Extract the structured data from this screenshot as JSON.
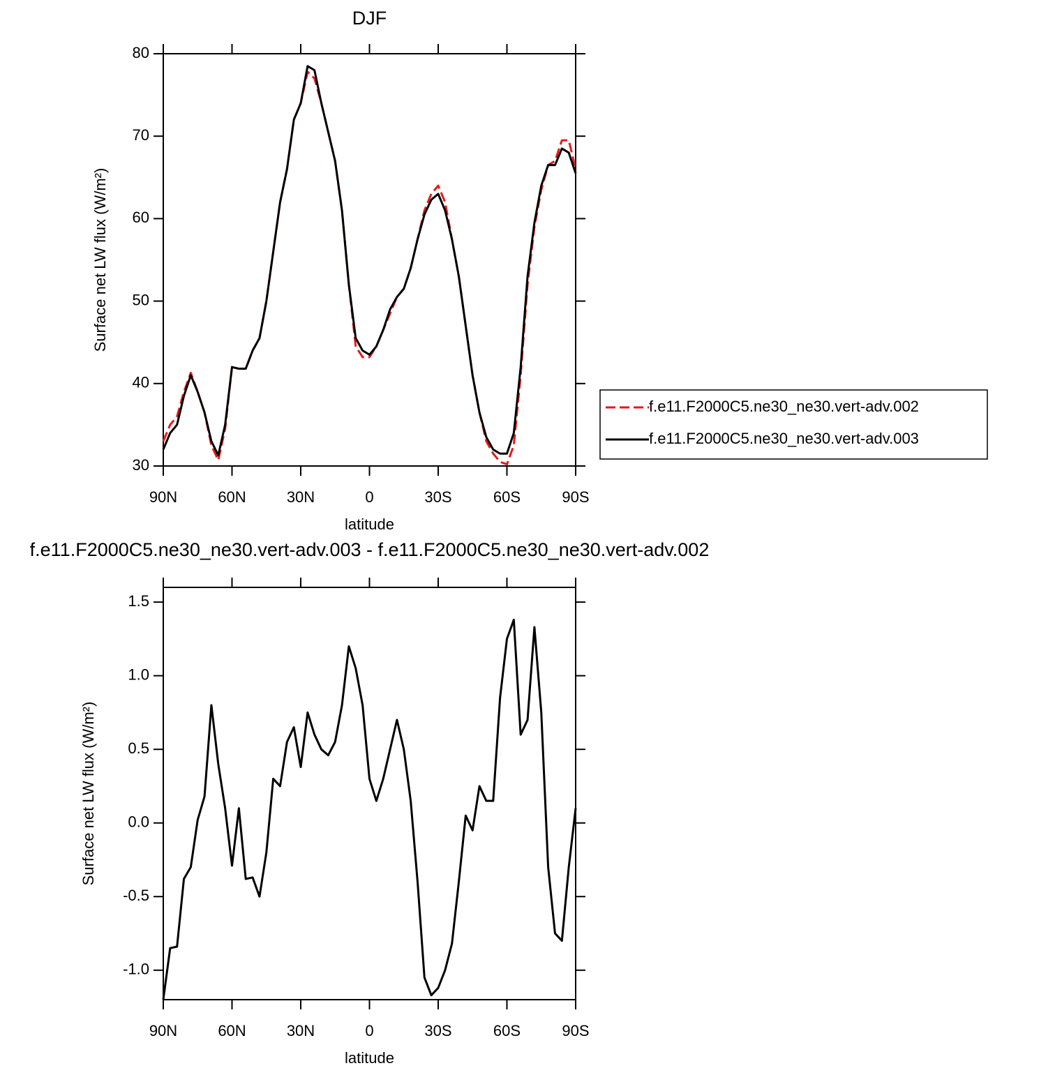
{
  "chart_data": [
    {
      "type": "line",
      "title": "DJF",
      "xlabel": "latitude",
      "ylabel": "Surface net LW flux (W/m²)",
      "x": [
        90,
        87,
        84,
        81,
        78,
        75,
        72,
        69,
        66,
        63,
        60,
        57,
        54,
        51,
        48,
        45,
        42,
        39,
        36,
        33,
        30,
        27,
        24,
        21,
        18,
        15,
        12,
        9,
        6,
        3,
        0,
        -3,
        -6,
        -9,
        -12,
        -15,
        -18,
        -21,
        -24,
        -27,
        -30,
        -33,
        -36,
        -39,
        -42,
        -45,
        -48,
        -51,
        -54,
        -57,
        -60,
        -63,
        -66,
        -69,
        -72,
        -75,
        -78,
        -81,
        -84,
        -87,
        -90
      ],
      "series": [
        {
          "name": "f.e11.F2000C5.ne30_ne30.vert-adv.002",
          "color": "#e41a1c",
          "line_style": "dashed",
          "values": [
            33,
            35,
            36,
            39,
            41.3,
            39,
            36.5,
            32.5,
            30.7,
            34.5,
            42,
            41.8,
            41.8,
            44,
            45.5,
            50,
            56,
            62,
            66,
            72,
            74,
            77.8,
            77,
            74,
            70.5,
            67,
            61,
            52,
            44.5,
            43.2,
            43.2,
            44.5,
            46.5,
            48.5,
            50.5,
            51.5,
            54,
            57.5,
            61,
            63,
            64,
            62,
            57.5,
            53,
            47,
            41,
            36.5,
            33,
            31.5,
            30.5,
            30.2,
            32.5,
            41,
            52,
            59,
            63.5,
            66.5,
            67,
            69.5,
            69.5,
            66
          ]
        },
        {
          "name": "f.e11.F2000C5.ne30_ne30.vert-adv.003",
          "color": "#000000",
          "line_style": "solid",
          "values": [
            32,
            34,
            35,
            38.5,
            41,
            39,
            36.5,
            33,
            31.3,
            35,
            42,
            41.8,
            41.8,
            44,
            45.5,
            50,
            56,
            62,
            66,
            72,
            74,
            78.5,
            78,
            74,
            70.5,
            67,
            61,
            52,
            45.5,
            44,
            43.5,
            44.5,
            46.5,
            49,
            50.5,
            51.5,
            54,
            57.5,
            60.5,
            62.3,
            63,
            61,
            57.5,
            53,
            47,
            41,
            36.5,
            33.5,
            32,
            31.5,
            31.5,
            34,
            42,
            53,
            59.5,
            64,
            66.5,
            66.5,
            68.5,
            68,
            65.5
          ]
        }
      ],
      "xlim": [
        90,
        -90
      ],
      "xticks": [
        {
          "value": 90,
          "label": "90N"
        },
        {
          "value": 60,
          "label": "60N"
        },
        {
          "value": 30,
          "label": "30N"
        },
        0,
        {
          "value": -30,
          "label": "30S"
        },
        {
          "value": -60,
          "label": "60S"
        },
        {
          "value": -90,
          "label": "90S"
        }
      ],
      "ylim": [
        30,
        80
      ],
      "yticks": [
        30,
        40,
        50,
        60,
        70,
        80
      ],
      "legend": "right"
    },
    {
      "type": "line",
      "title": "f.e11.F2000C5.ne30_ne30.vert-adv.003 - f.e11.F2000C5.ne30_ne30.vert-adv.002",
      "xlabel": "latitude",
      "ylabel": "Surface net LW flux (W/m²)",
      "x": [
        90,
        87,
        84,
        81,
        78,
        75,
        72,
        69,
        66,
        63,
        60,
        57,
        54,
        51,
        48,
        45,
        42,
        39,
        36,
        33,
        30,
        27,
        24,
        21,
        18,
        15,
        12,
        9,
        6,
        3,
        0,
        -3,
        -6,
        -9,
        -12,
        -15,
        -18,
        -21,
        -24,
        -27,
        -30,
        -33,
        -36,
        -39,
        -42,
        -45,
        -48,
        -51,
        -54,
        -57,
        -60,
        -63,
        -66,
        -69,
        -72,
        -75,
        -78,
        -81,
        -84,
        -87,
        -90
      ],
      "series": [
        {
          "color": "#000000",
          "line_style": "solid",
          "values": [
            -1.2,
            -0.85,
            -0.84,
            -0.38,
            -0.3,
            0.02,
            0.18,
            0.8,
            0.4,
            0.1,
            -0.29,
            0.1,
            -0.38,
            -0.37,
            -0.5,
            -0.2,
            0.3,
            0.25,
            0.55,
            0.65,
            0.38,
            0.75,
            0.6,
            0.5,
            0.46,
            0.55,
            0.8,
            1.2,
            1.05,
            0.8,
            0.3,
            0.15,
            0.3,
            0.5,
            0.7,
            0.5,
            0.15,
            -0.4,
            -1.05,
            -1.17,
            -1.12,
            -1.0,
            -0.82,
            -0.4,
            0.05,
            -0.05,
            0.25,
            0.15,
            0.15,
            0.85,
            1.25,
            1.38,
            0.6,
            0.7,
            1.33,
            0.75,
            -0.3,
            -0.75,
            -0.8,
            -0.3,
            0.1
          ]
        }
      ],
      "xlim": [
        90,
        -90
      ],
      "xticks": [
        {
          "value": 90,
          "label": "90N"
        },
        {
          "value": 60,
          "label": "60N"
        },
        {
          "value": 30,
          "label": "30N"
        },
        0,
        {
          "value": -30,
          "label": "30S"
        },
        {
          "value": -60,
          "label": "60S"
        },
        {
          "value": -90,
          "label": "90S"
        }
      ],
      "ylim": [
        -1.2,
        1.6
      ],
      "yticks": [
        {
          "value": -1,
          "label": "-1.0"
        },
        -0.5,
        {
          "value": 0,
          "label": "0.0"
        },
        0.5,
        {
          "value": 1,
          "label": "1.0"
        },
        1.5
      ]
    }
  ]
}
